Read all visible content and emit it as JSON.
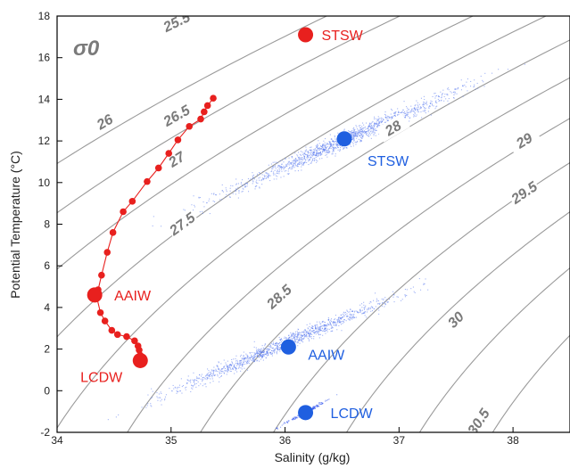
{
  "chart_data": {
    "type": "scatter",
    "xlabel": "Salinity (g/kg)",
    "ylabel": "Potential Temperature (°C)",
    "xlim": [
      34,
      38.5
    ],
    "ylim": [
      -2,
      18
    ],
    "xticks": [
      "34",
      "35",
      "36",
      "37",
      "38"
    ],
    "yticks": [
      "-2",
      "0",
      "2",
      "4",
      "6",
      "8",
      "10",
      "12",
      "14",
      "16",
      "18"
    ],
    "grid": false,
    "density_label": "σ0",
    "density_contours": [
      {
        "label": "25.5",
        "label_at": [
          35.05,
          17.7
        ]
      },
      {
        "label": "26",
        "label_at": [
          34.42,
          12.9
        ]
      },
      {
        "label": "26.5",
        "label_at": [
          35.05,
          13.2
        ]
      },
      {
        "label": "27",
        "label_at": [
          35.05,
          11.1
        ]
      },
      {
        "label": "27.5",
        "label_at": [
          35.1,
          8.0
        ]
      },
      {
        "label": "28",
        "label_at": [
          36.95,
          12.6
        ]
      },
      {
        "label": "28.5",
        "label_at": [
          35.95,
          4.5
        ]
      },
      {
        "label": "29",
        "label_at": [
          38.1,
          12.0
        ]
      },
      {
        "label": "29.5",
        "label_at": [
          38.1,
          9.5
        ]
      },
      {
        "label": "30",
        "label_at": [
          37.5,
          3.4
        ]
      },
      {
        "label": "30.5",
        "label_at": [
          37.7,
          -1.5
        ]
      }
    ],
    "series": [
      {
        "name": "profile",
        "color": "#e8201e",
        "points": [
          [
            35.37,
            14.05
          ],
          [
            35.32,
            13.7
          ],
          [
            35.29,
            13.4
          ],
          [
            35.26,
            13.05
          ],
          [
            35.16,
            12.7
          ],
          [
            35.06,
            12.05
          ],
          [
            34.98,
            11.4
          ],
          [
            34.89,
            10.7
          ],
          [
            34.79,
            10.05
          ],
          [
            34.66,
            9.1
          ],
          [
            34.58,
            8.6
          ],
          [
            34.49,
            7.6
          ],
          [
            34.44,
            6.65
          ],
          [
            34.39,
            5.55
          ],
          [
            34.36,
            4.85
          ],
          [
            34.35,
            4.45
          ],
          [
            34.38,
            3.75
          ],
          [
            34.42,
            3.35
          ],
          [
            34.48,
            2.9
          ],
          [
            34.53,
            2.7
          ],
          [
            34.61,
            2.6
          ],
          [
            34.68,
            2.4
          ],
          [
            34.71,
            2.15
          ],
          [
            34.72,
            1.95
          ],
          [
            34.73,
            1.7
          ],
          [
            34.72,
            1.5
          ],
          [
            34.73,
            1.35
          ]
        ]
      },
      {
        "name": "water-masses-observed",
        "color": "#e8201e",
        "points": [
          {
            "label": "STSW",
            "x": 36.18,
            "y": 17.1
          },
          {
            "label": "AAIW",
            "x": 34.33,
            "y": 4.6
          },
          {
            "label": "LCDW",
            "x": 34.73,
            "y": 1.45
          }
        ]
      },
      {
        "name": "water-masses-cluster-centers",
        "color": "#1f5fe0",
        "points": [
          {
            "label": "STSW",
            "x": 36.52,
            "y": 12.1
          },
          {
            "label": "AAIW",
            "x": 36.03,
            "y": 2.1
          },
          {
            "label": "LCDW",
            "x": 36.18,
            "y": -1.05
          }
        ]
      }
    ],
    "scatter_clouds": [
      {
        "color": "#5577ee",
        "center": [
          36.5,
          12.0
        ],
        "spread": [
          0.45,
          0.9
        ],
        "count": 1400
      },
      {
        "color": "#5577ee",
        "center": [
          35.95,
          2.2
        ],
        "spread": [
          0.45,
          0.75
        ],
        "count": 1200
      },
      {
        "color": "#3355ee",
        "center": [
          36.18,
          -1.0
        ],
        "spread": [
          0.04,
          0.35
        ],
        "count": 200
      }
    ]
  }
}
